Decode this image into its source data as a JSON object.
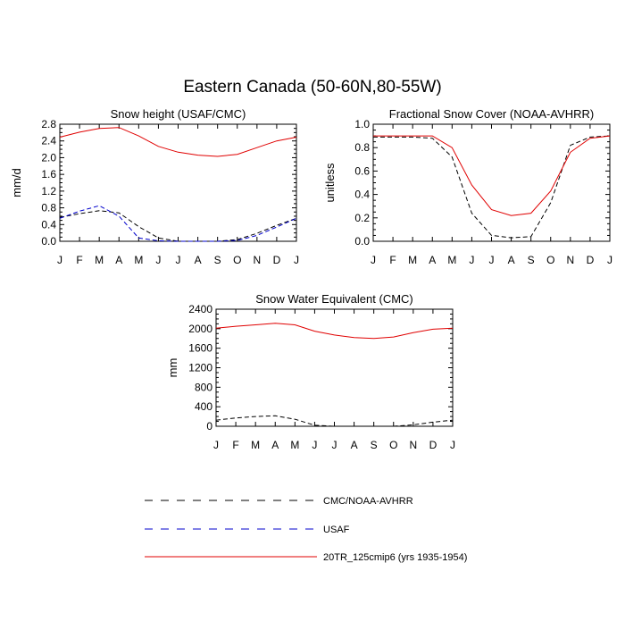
{
  "title": "Eastern Canada (50-60N,80-55W)",
  "colors": {
    "cmc": "#000000",
    "usaf": "#0000cc",
    "model": "#e00000"
  },
  "legend": [
    {
      "label": "CMC/NOAA-AVHRR",
      "color": "#000000",
      "dash": "dashed"
    },
    {
      "label": "USAF",
      "color": "#0000cc",
      "dash": "dashed"
    },
    {
      "label": "20TR_125cmip6 (yrs 1935-1954)",
      "color": "#e00000",
      "dash": "solid"
    }
  ],
  "chart_data": [
    {
      "type": "line",
      "title": "Snow height (USAF/CMC)",
      "ylabel": "mm/d",
      "ylim": [
        0,
        2.8
      ],
      "yticks": [
        "0.0",
        "0.4",
        "0.8",
        "1.2",
        "1.6",
        "2.0",
        "2.4",
        "2.8"
      ],
      "yticks_values": [
        0,
        0.4,
        0.8,
        1.2,
        1.6,
        2.0,
        2.4,
        2.8
      ],
      "categories": [
        "J",
        "F",
        "M",
        "A",
        "M",
        "J",
        "J",
        "A",
        "S",
        "O",
        "N",
        "D",
        "J"
      ],
      "series": [
        {
          "name": "CMC/NOAA-AVHRR",
          "color": "#000000",
          "dash": "dashed",
          "values": [
            0.57,
            0.66,
            0.73,
            0.68,
            0.35,
            0.08,
            0.0,
            0.0,
            0.0,
            0.04,
            0.19,
            0.38,
            0.55
          ]
        },
        {
          "name": "USAF",
          "color": "#0000cc",
          "dash": "dashed",
          "values": [
            0.55,
            0.72,
            0.85,
            0.6,
            0.08,
            0.01,
            0.0,
            0.0,
            0.0,
            0.02,
            0.14,
            0.34,
            0.55
          ]
        },
        {
          "name": "20TR_125cmip6 (yrs 1935-1954)",
          "color": "#e00000",
          "dash": "solid",
          "values": [
            2.49,
            2.61,
            2.7,
            2.72,
            2.52,
            2.27,
            2.13,
            2.06,
            2.03,
            2.08,
            2.24,
            2.4,
            2.49
          ]
        }
      ]
    },
    {
      "type": "line",
      "title": "Fractional Snow Cover (NOAA-AVHRR)",
      "ylabel": "unitless",
      "ylim": [
        0,
        1.0
      ],
      "yticks": [
        "0.0",
        "0.2",
        "0.4",
        "0.6",
        "0.8",
        "1.0"
      ],
      "yticks_values": [
        0,
        0.2,
        0.4,
        0.6,
        0.8,
        1.0
      ],
      "categories": [
        "J",
        "F",
        "M",
        "A",
        "M",
        "J",
        "J",
        "A",
        "S",
        "O",
        "N",
        "D",
        "J"
      ],
      "series": [
        {
          "name": "CMC/NOAA-AVHRR",
          "color": "#000000",
          "dash": "dashed",
          "values": [
            0.89,
            0.89,
            0.89,
            0.88,
            0.72,
            0.24,
            0.05,
            0.03,
            0.04,
            0.33,
            0.82,
            0.89,
            0.9
          ]
        },
        {
          "name": "20TR_125cmip6 (yrs 1935-1954)",
          "color": "#e00000",
          "dash": "solid",
          "values": [
            0.9,
            0.9,
            0.9,
            0.9,
            0.8,
            0.48,
            0.27,
            0.22,
            0.24,
            0.43,
            0.76,
            0.88,
            0.9
          ]
        }
      ]
    },
    {
      "type": "line",
      "title": "Snow Water Equivalent (CMC)",
      "ylabel": "mm",
      "ylim": [
        0,
        2400
      ],
      "yticks": [
        "0",
        "400",
        "800",
        "1200",
        "1600",
        "2000",
        "2400"
      ],
      "yticks_values": [
        0,
        400,
        800,
        1200,
        1600,
        2000,
        2400
      ],
      "categories": [
        "J",
        "F",
        "M",
        "A",
        "M",
        "J",
        "J",
        "A",
        "S",
        "O",
        "N",
        "D",
        "J"
      ],
      "series": [
        {
          "name": "CMC/NOAA-AVHRR",
          "color": "#000000",
          "dash": "dashed",
          "values": [
            125,
            170,
            200,
            215,
            145,
            20,
            0,
            0,
            0,
            0,
            30,
            85,
            125
          ]
        },
        {
          "name": "20TR_125cmip6 (yrs 1935-1954)",
          "color": "#e00000",
          "dash": "solid",
          "values": [
            2010,
            2050,
            2080,
            2110,
            2080,
            1950,
            1870,
            1820,
            1800,
            1830,
            1920,
            1990,
            2010
          ]
        }
      ]
    }
  ]
}
